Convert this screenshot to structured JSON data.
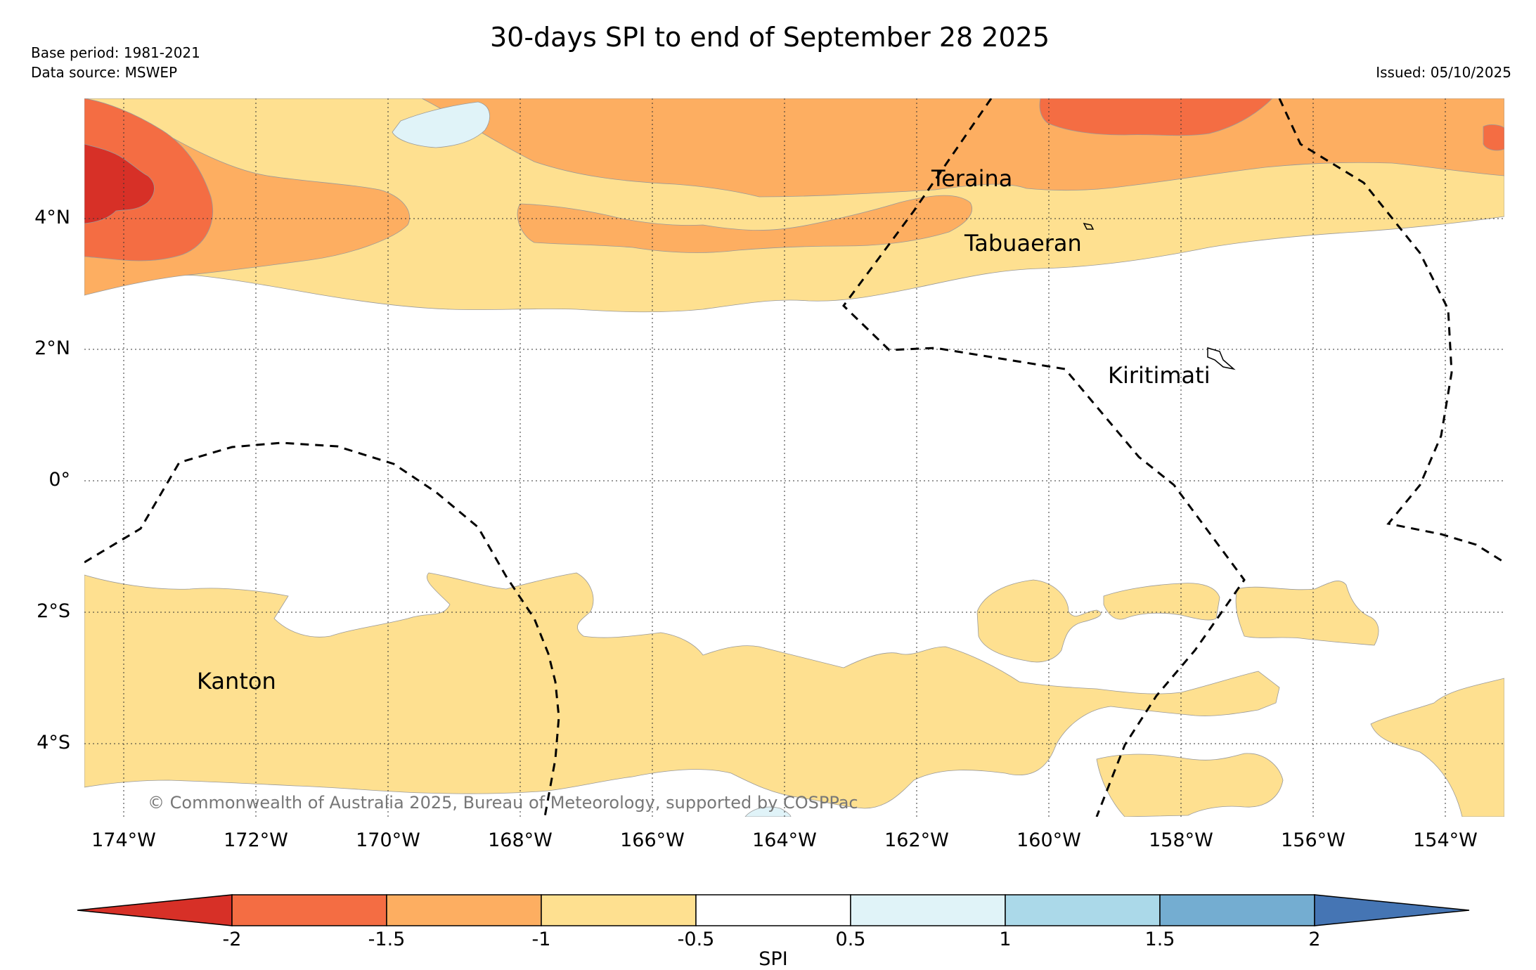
{
  "title": "30-days SPI to end of September 28 2025",
  "base_period": "Base period: 1981-2021",
  "data_source": "Data source: MSWEP",
  "issued": "Issued: 05/10/2025",
  "copyright": "© Commonwealth of Australia 2025, Bureau of Meteorology, supported by COSPPac",
  "lat_labels": [
    "4°N",
    "2°N",
    "0°",
    "2°S",
    "4°S"
  ],
  "lon_labels": [
    "174°W",
    "172°W",
    "170°W",
    "168°W",
    "166°W",
    "164°W",
    "162°W",
    "160°W",
    "158°W",
    "156°W",
    "154°W"
  ],
  "places": [
    "Teraina",
    "Tabuaeran",
    "Kiritimati",
    "Kanton"
  ],
  "colorbar": {
    "label": "SPI",
    "ticks": [
      "-2",
      "-1.5",
      "-1",
      "-0.5",
      "0.5",
      "1",
      "1.5",
      "2"
    ],
    "colors": [
      "#d73027",
      "#f46d43",
      "#fdae61",
      "#fee090",
      "#ffffff",
      "#e0f3f8",
      "#abd9e9",
      "#74add1",
      "#4575b4"
    ]
  }
}
